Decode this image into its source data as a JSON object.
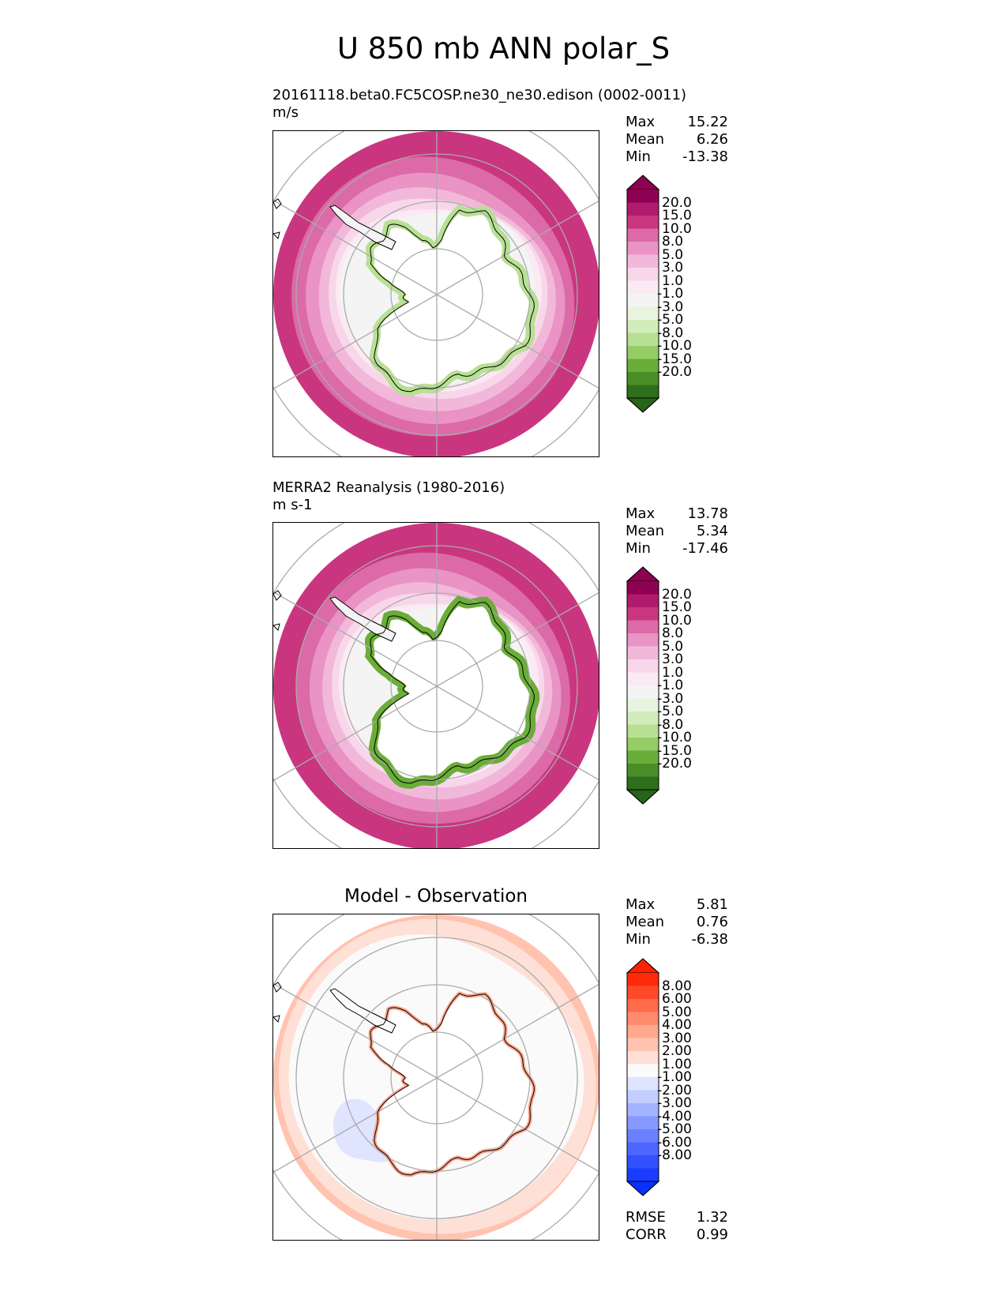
{
  "title": "U 850 mb ANN polar_S",
  "panels": [
    {
      "id": "test",
      "title_line1": "20161118.beta0.FC5COSP.ne30_ne30.edison (0002-0011)",
      "title_line2": "m/s",
      "center_title": "",
      "stats": [
        {
          "label": "Max",
          "value": "15.22"
        },
        {
          "label": "Mean",
          "value": "6.26"
        },
        {
          "label": "Min",
          "value": "-13.38"
        }
      ],
      "colorbar": {
        "ticks": [
          "20.0",
          "15.0",
          "10.0",
          "8.0",
          "5.0",
          "3.0",
          "1.0",
          "-1.0",
          "-3.0",
          "-5.0",
          "-8.0",
          "-10.0",
          "-15.0",
          "-20.0"
        ],
        "colors": [
          "#8e0152",
          "#b11b6d",
          "#c9367f",
          "#dc6aa8",
          "#e994c4",
          "#f2b8da",
          "#f8d7ea",
          "#fbeaf3",
          "#f4f4f4",
          "#e9f4de",
          "#d3ecbb",
          "#b8e095",
          "#94cc65",
          "#6aad38",
          "#4a8e27",
          "#2e6e1c"
        ],
        "top_color": "#8e0152",
        "bottom_color": "#276419"
      },
      "extra_stats": []
    },
    {
      "id": "ref",
      "title_line1": "MERRA2 Reanalysis (1980-2016)",
      "title_line2": "m s-1",
      "center_title": "",
      "stats": [
        {
          "label": "Max",
          "value": "13.78"
        },
        {
          "label": "Mean",
          "value": "5.34"
        },
        {
          "label": "Min",
          "value": "-17.46"
        }
      ],
      "colorbar": {
        "ticks": [
          "20.0",
          "15.0",
          "10.0",
          "8.0",
          "5.0",
          "3.0",
          "1.0",
          "-1.0",
          "-3.0",
          "-5.0",
          "-8.0",
          "-10.0",
          "-15.0",
          "-20.0"
        ],
        "colors": [
          "#8e0152",
          "#b11b6d",
          "#c9367f",
          "#dc6aa8",
          "#e994c4",
          "#f2b8da",
          "#f8d7ea",
          "#fbeaf3",
          "#f4f4f4",
          "#e9f4de",
          "#d3ecbb",
          "#b8e095",
          "#94cc65",
          "#6aad38",
          "#4a8e27",
          "#2e6e1c"
        ],
        "top_color": "#8e0152",
        "bottom_color": "#276419"
      },
      "extra_stats": []
    },
    {
      "id": "diff",
      "title_line1": "",
      "title_line2": "",
      "center_title": "Model - Observation",
      "stats": [
        {
          "label": "Max",
          "value": "5.81"
        },
        {
          "label": "Mean",
          "value": "0.76"
        },
        {
          "label": "Min",
          "value": "-6.38"
        }
      ],
      "colorbar": {
        "ticks": [
          "8.00",
          "6.00",
          "5.00",
          "4.00",
          "3.00",
          "2.00",
          "1.00",
          "-1.00",
          "-2.00",
          "-3.00",
          "-4.00",
          "-5.00",
          "-6.00",
          "-8.00"
        ],
        "colors": [
          "#ff2a0a",
          "#ff4a2a",
          "#ff6a4a",
          "#ff8a6e",
          "#ffa88f",
          "#ffc3b0",
          "#ffe0d6",
          "#fafafa",
          "#dfe4ff",
          "#c3cdff",
          "#a4b3ff",
          "#8699ff",
          "#6a80ff",
          "#4d66ff",
          "#3350ff",
          "#1a3cff"
        ],
        "top_color": "#ff2200",
        "bottom_color": "#0a30ff"
      },
      "extra_stats": [
        {
          "label": "RMSE",
          "value": "1.32"
        },
        {
          "label": "CORR",
          "value": "0.99"
        }
      ]
    }
  ]
}
